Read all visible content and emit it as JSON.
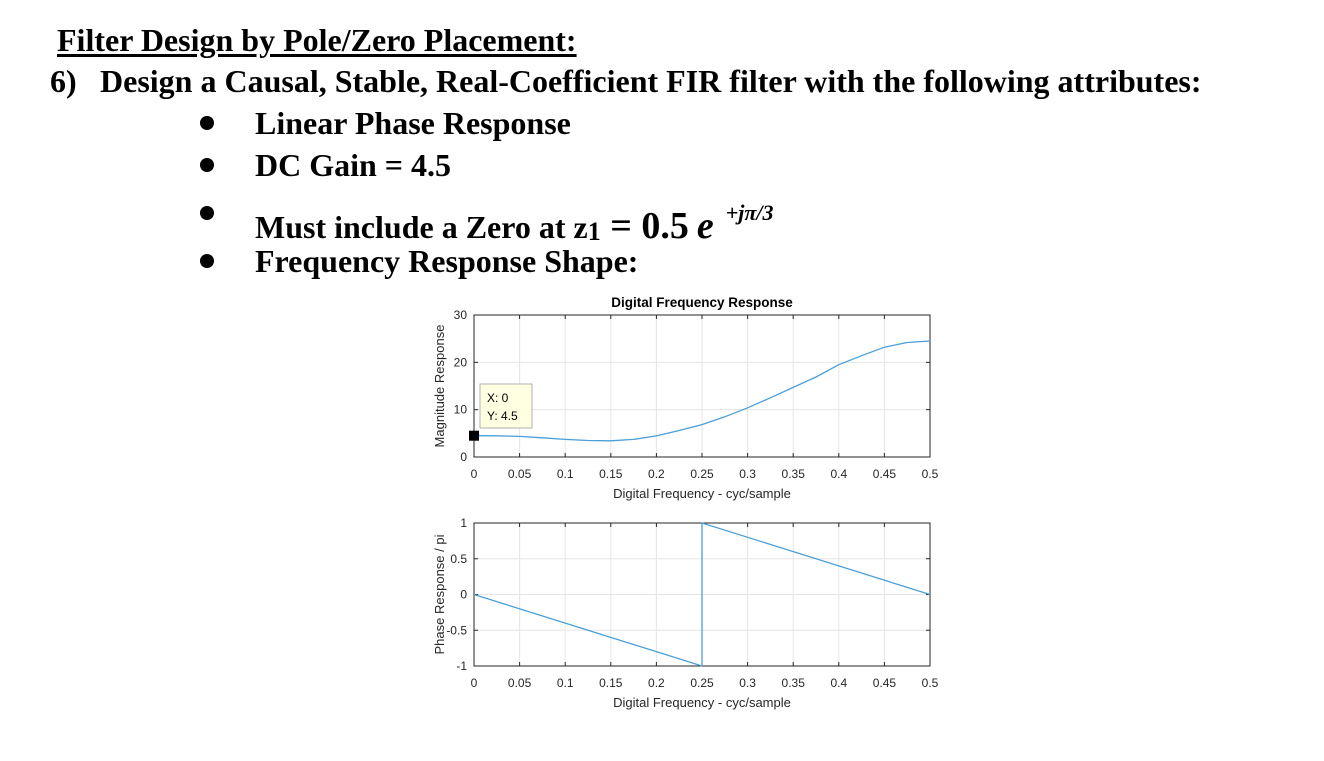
{
  "heading": "Filter Design by Pole/Zero Placement:",
  "problem": {
    "number": "6)",
    "text": "Design a Causal, Stable, Real-Coefficient FIR filter with the following attributes:"
  },
  "bullets": {
    "b1": "Linear Phase Response",
    "b2": "DC Gain = 4.5",
    "b3_prefix": "Must include a Zero at z",
    "b3_sub": "1",
    "b3_eq": " = ",
    "b3_mag": "0.5",
    "b3_e": "e",
    "b3_exp": "+jπ/3",
    "b4": "Frequency Response Shape:"
  },
  "chart_data": [
    {
      "type": "line",
      "title": "Digital Frequency Response",
      "xlabel": "Digital Frequency - cyc/sample",
      "ylabel": "Magnitude Response",
      "xlim": [
        0,
        0.5
      ],
      "ylim": [
        0,
        30
      ],
      "xticks": [
        "0",
        "0.05",
        "0.1",
        "0.15",
        "0.2",
        "0.25",
        "0.3",
        "0.35",
        "0.4",
        "0.45",
        "0.5"
      ],
      "yticks": [
        "0",
        "10",
        "20",
        "30"
      ],
      "grid": true,
      "line_color": "#4a9fd8",
      "x": [
        0,
        0.025,
        0.05,
        0.075,
        0.1,
        0.125,
        0.15,
        0.175,
        0.2,
        0.225,
        0.25,
        0.275,
        0.3,
        0.325,
        0.35,
        0.375,
        0.4,
        0.425,
        0.45,
        0.475,
        0.5
      ],
      "y": [
        4.5,
        4.48,
        4.35,
        4.05,
        3.72,
        3.48,
        3.42,
        3.72,
        4.45,
        5.6,
        6.85,
        8.5,
        10.4,
        12.5,
        14.7,
        16.9,
        19.5,
        21.4,
        23.2,
        24.2,
        24.5
      ],
      "datatip": {
        "x_label": "X: 0",
        "y_label": "Y: 4.5",
        "x": 0,
        "y": 4.5
      }
    },
    {
      "type": "line",
      "title": "",
      "xlabel": "Digital Frequency - cyc/sample",
      "ylabel": "Phase Response / pi",
      "xlim": [
        0,
        0.5
      ],
      "ylim": [
        -1,
        1
      ],
      "xticks": [
        "0",
        "0.05",
        "0.1",
        "0.15",
        "0.2",
        "0.25",
        "0.3",
        "0.35",
        "0.4",
        "0.45",
        "0.5"
      ],
      "yticks": [
        "-1",
        "-0.5",
        "0",
        "0.5",
        "1"
      ],
      "grid": true,
      "line_color": "#4a9fd8",
      "x": [
        0,
        0.25,
        0.25,
        0.5
      ],
      "y": [
        0,
        -1,
        1,
        0
      ]
    }
  ]
}
